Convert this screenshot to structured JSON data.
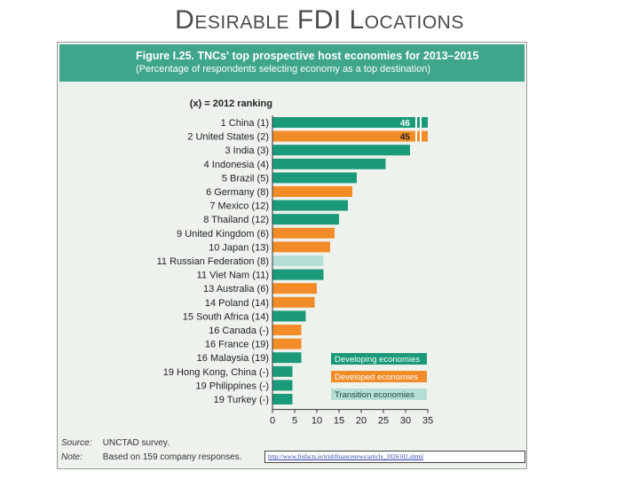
{
  "slide": {
    "title": "Desirable FDI Locations"
  },
  "figure": {
    "title": "Figure I.25. TNCs' top prospective host economies for 2013–2015",
    "subtitle": "(Percentage of respondents selecting economy as a top destination)",
    "ranking_note": "(x) = 2012 ranking",
    "source_label": "Source:",
    "source_text": "UNCTAD survey.",
    "note_label": "Note:",
    "note_text": "Based on 159 company responses.",
    "url": "http://www.finfacts.ie/irishfinancenews/article_1026102.shtml"
  },
  "colors": {
    "developing": "#1a9a78",
    "developed": "#f28c28",
    "transition": "#b5ded5",
    "header": "#3fa58b"
  },
  "chart_data": {
    "type": "bar",
    "orientation": "horizontal",
    "categories": [
      "1 China (1)",
      "2 United States (2)",
      "3 India (3)",
      "4 Indonesia (4)",
      "5 Brazil (5)",
      "6 Germany (8)",
      "7 Mexico (12)",
      "8 Thailand (12)",
      "9 United Kingdom (6)",
      "10 Japan (13)",
      "11 Russian Federation (8)",
      "11 Viet Nam (11)",
      "13 Australia (6)",
      "14 Poland (14)",
      "15 South Africa (14)",
      "16 Canada (-)",
      "16 France (19)",
      "16 Malaysia (19)",
      "19 Hong Kong, China (-)",
      "19 Philippines (-)",
      "19 Turkey (-)"
    ],
    "values": [
      46,
      45,
      31,
      25.5,
      19,
      18,
      17,
      15,
      14,
      13,
      11.5,
      11.5,
      10,
      9.5,
      7.5,
      6.5,
      6.5,
      6.5,
      4.5,
      4.5,
      4.5
    ],
    "groups": [
      "developing",
      "developed",
      "developing",
      "developing",
      "developing",
      "developed",
      "developing",
      "developing",
      "developed",
      "developed",
      "transition",
      "developing",
      "developed",
      "developed",
      "developing",
      "developed",
      "developed",
      "developing",
      "developing",
      "developing",
      "developing"
    ],
    "data_labels": [
      "46",
      "45",
      "",
      "",
      "",
      "",
      "",
      "",
      "",
      "",
      "",
      "",
      "",
      "",
      "",
      "",
      "",
      "",
      "",
      "",
      ""
    ],
    "xlim": [
      0,
      35
    ],
    "xticks": [
      "0",
      "5",
      "10",
      "15",
      "20",
      "25",
      "30",
      "35"
    ],
    "legend": [
      {
        "key": "developing",
        "label": "Developing economies"
      },
      {
        "key": "developed",
        "label": "Developed economies"
      },
      {
        "key": "transition",
        "label": "Transition economies"
      }
    ],
    "legend_position": "bottom-right",
    "grid": false
  }
}
